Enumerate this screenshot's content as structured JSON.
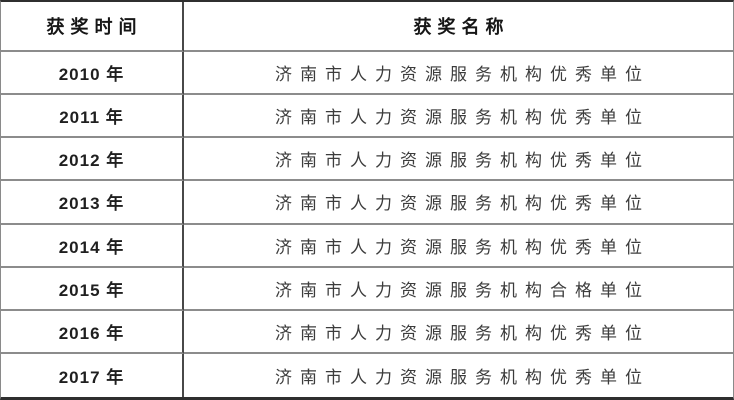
{
  "page": {
    "background": "#ffffff"
  },
  "colors": {
    "outer_border": "#2f2f2f",
    "inner_border": "#8c8c8c",
    "column_divider": "#484848",
    "header_text": "#161616",
    "year_text": "#1f1f1f",
    "award_text": "#3c3c3c"
  },
  "table": {
    "columns": [
      {
        "label": "获奖时间"
      },
      {
        "label": "获奖名称"
      }
    ],
    "rows": [
      {
        "year": "2010 年",
        "award": "济南市人力资源服务机构优秀单位"
      },
      {
        "year": "2011 年",
        "award": "济南市人力资源服务机构优秀单位"
      },
      {
        "year": "2012 年",
        "award": "济南市人力资源服务机构优秀单位"
      },
      {
        "year": "2013 年",
        "award": "济南市人力资源服务机构优秀单位"
      },
      {
        "year": "2014 年",
        "award": "济南市人力资源服务机构优秀单位"
      },
      {
        "year": "2015 年",
        "award": "济南市人力资源服务机构合格单位"
      },
      {
        "year": "2016 年",
        "award": "济南市人力资源服务机构优秀单位"
      },
      {
        "year": "2017 年",
        "award": "济南市人力资源服务机构优秀单位"
      }
    ]
  }
}
